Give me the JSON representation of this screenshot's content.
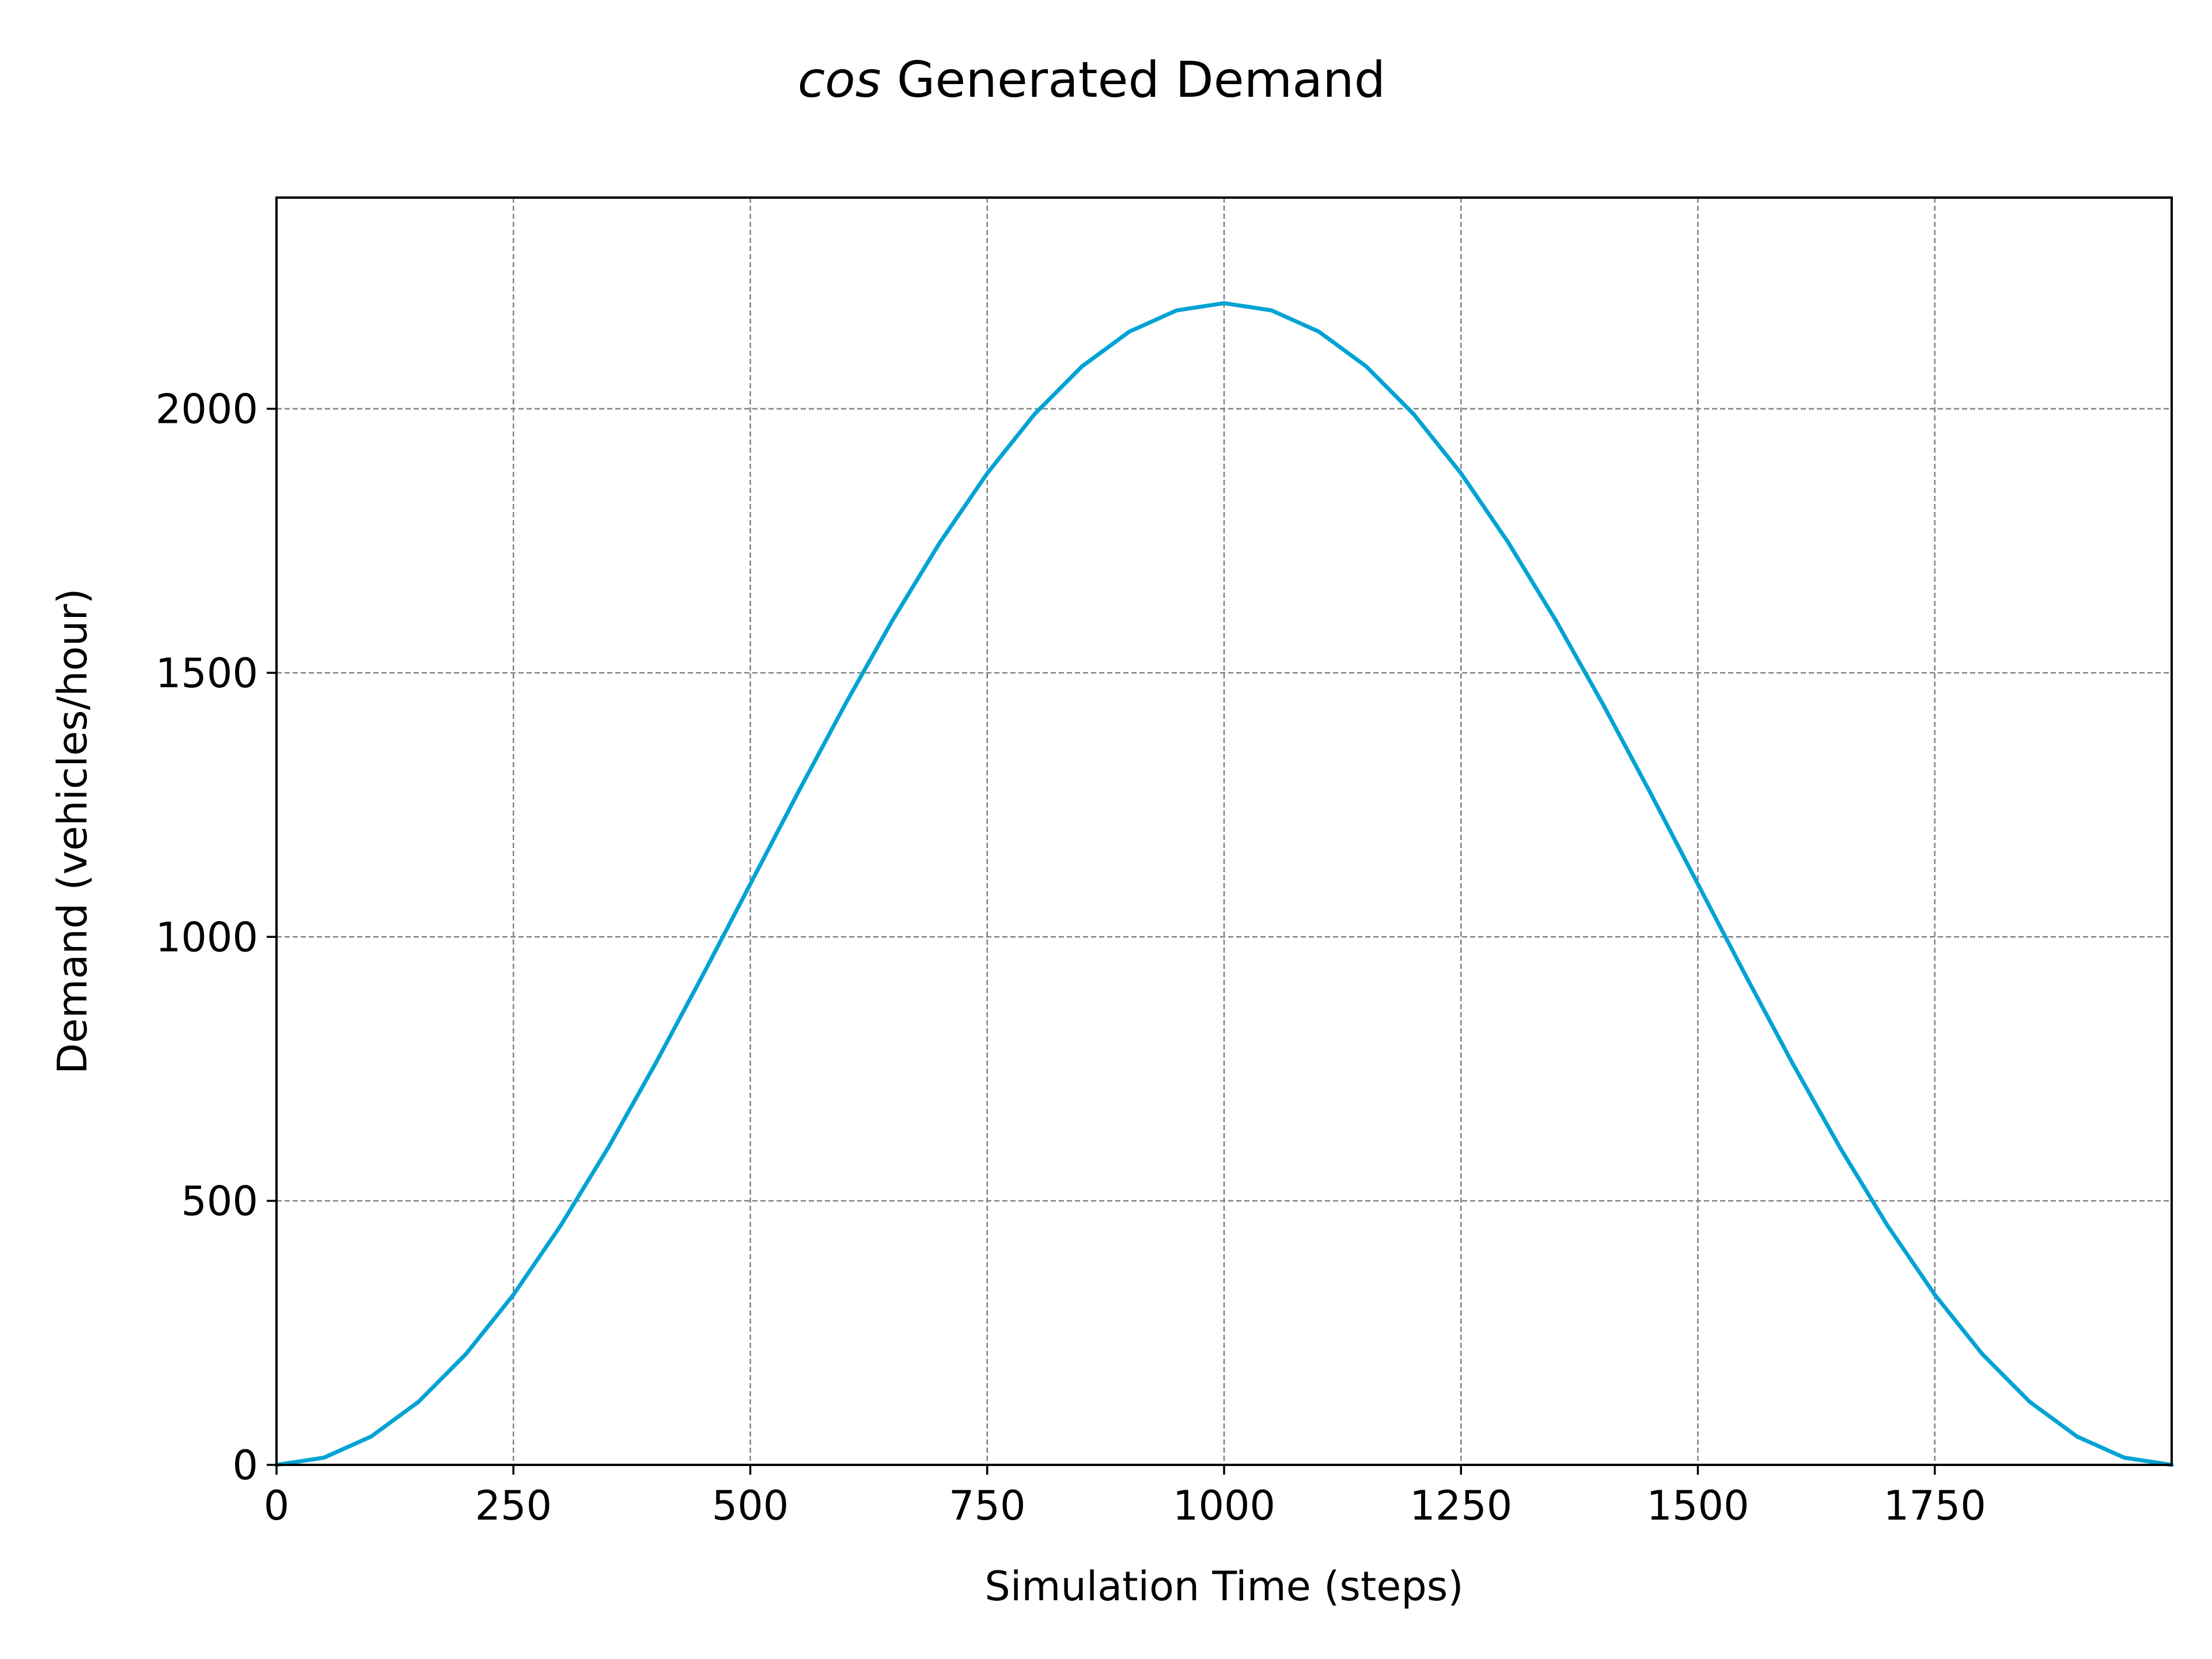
{
  "chart_data": {
    "type": "line",
    "title_prefix": "cos",
    "title_rest": " Generated Demand",
    "xlabel": "Simulation Time (steps)",
    "ylabel": "Demand (vehicles/hour)",
    "xlim": [
      0,
      2000
    ],
    "ylim": [
      0,
      2400
    ],
    "xticks": [
      0,
      250,
      500,
      750,
      1000,
      1250,
      1500,
      1750
    ],
    "xtick_labels": [
      "0",
      "250",
      "500",
      "750",
      "1000",
      "1250",
      "1500",
      "1750"
    ],
    "yticks": [
      0,
      500,
      1000,
      1500,
      2000
    ],
    "ytick_labels": [
      "0",
      "500",
      "1000",
      "1500",
      "2000"
    ],
    "grid": true,
    "series": [
      {
        "color": "#00A3D4",
        "x": [
          0,
          50,
          100,
          150,
          200,
          250,
          300,
          350,
          400,
          450,
          500,
          550,
          600,
          650,
          700,
          750,
          800,
          850,
          900,
          950,
          1000,
          1050,
          1100,
          1150,
          1200,
          1250,
          1300,
          1350,
          1400,
          1450,
          1500,
          1550,
          1600,
          1650,
          1700,
          1750,
          1800,
          1850,
          1900,
          1950,
          2000
        ],
        "y": [
          0,
          13.6,
          53.8,
          119.7,
          210.1,
          322.2,
          453.5,
          600.6,
          760.1,
          927.9,
          1100,
          1272.1,
          1439.9,
          1599.4,
          1746.5,
          1877.8,
          1989.9,
          2080.3,
          2146.2,
          2186.4,
          2200,
          2186.4,
          2146.2,
          2080.3,
          1989.9,
          1877.8,
          1746.5,
          1599.4,
          1439.9,
          1272.1,
          1100,
          927.9,
          760.1,
          600.6,
          453.5,
          322.2,
          210.1,
          119.7,
          53.8,
          13.6,
          0
        ]
      }
    ]
  }
}
